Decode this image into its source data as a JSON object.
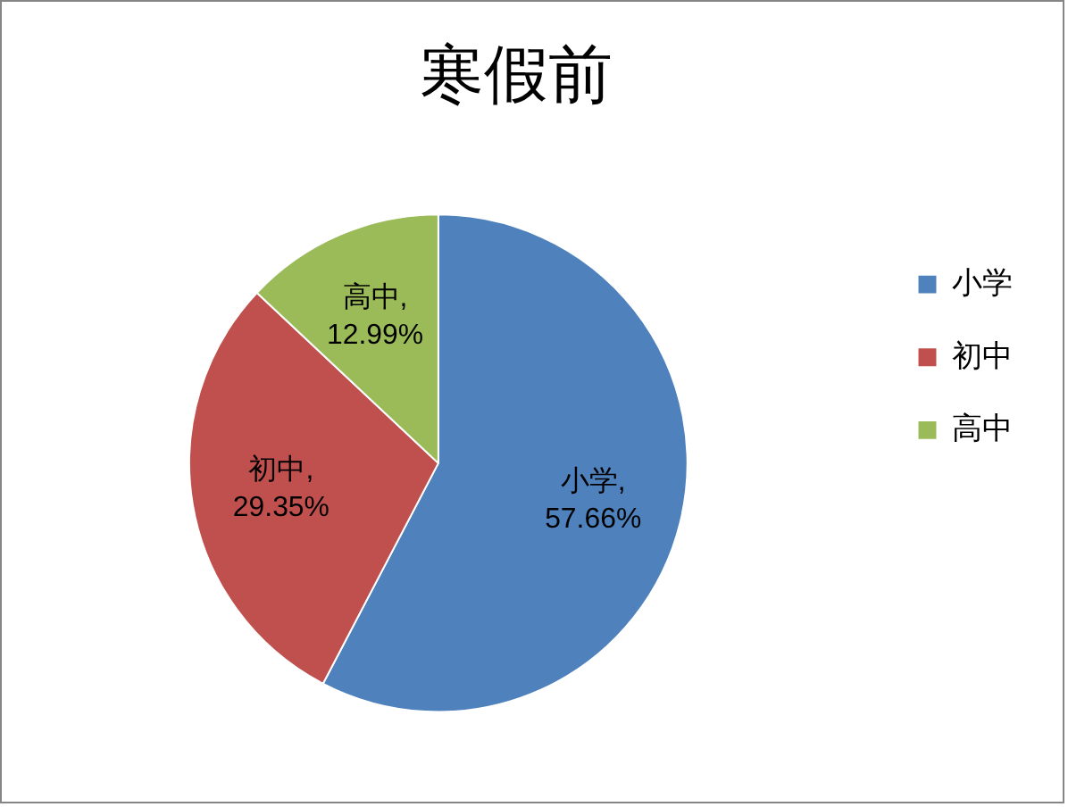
{
  "chart_data": {
    "type": "pie",
    "title": "寒假前",
    "categories": [
      "小学",
      "初中",
      "高中"
    ],
    "values": [
      57.66,
      29.35,
      12.99
    ],
    "colors": [
      "#4f81bd",
      "#c0504d",
      "#9bbb59"
    ],
    "value_labels": [
      "小学, 57.66%",
      "初中, 29.35%",
      "高中, 12.99%"
    ],
    "legend": "right"
  }
}
